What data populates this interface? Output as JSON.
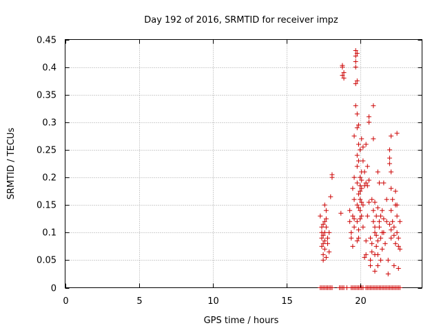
{
  "chart_data": {
    "type": "scatter",
    "title": "Day 192 of 2016, SRMTID for receiver impz",
    "xlabel": "GPS time / hours",
    "ylabel": "SRMTID / TECUs",
    "xlim": [
      0,
      24.2
    ],
    "ylim": [
      0,
      0.45
    ],
    "xticks": [
      0,
      5,
      10,
      15,
      20
    ],
    "xtick_labels": [
      "0",
      "5",
      "10",
      "15",
      "20"
    ],
    "yticks": [
      0,
      0.05,
      0.1,
      0.15,
      0.2,
      0.25,
      0.3,
      0.35,
      0.4,
      0.45
    ],
    "ytick_labels": [
      "0",
      "0.05",
      "0.1",
      "0.15",
      "0.2",
      "0.25",
      "0.3",
      "0.35",
      "0.4",
      "0.45"
    ],
    "grid": true,
    "marker": "+",
    "color": "#cc0000",
    "series": [
      {
        "name": "SRMTID",
        "points": [
          [
            17.3,
            0.13
          ],
          [
            17.4,
            0.11
          ],
          [
            17.4,
            0.09
          ],
          [
            17.5,
            0.08
          ],
          [
            17.5,
            0.06
          ],
          [
            17.4,
            0.1
          ],
          [
            17.6,
            0.15
          ],
          [
            17.6,
            0.12
          ],
          [
            17.7,
            0.14
          ],
          [
            17.6,
            0.07
          ],
          [
            17.5,
            0.05
          ],
          [
            17.7,
            0.11
          ],
          [
            17.8,
            0.09
          ],
          [
            17.8,
            0.08
          ],
          [
            17.5,
            0.095
          ],
          [
            17.6,
            0.085
          ],
          [
            17.7,
            0.125
          ],
          [
            17.4,
            0.075
          ],
          [
            17.9,
            0.1
          ],
          [
            17.9,
            0.065
          ],
          [
            17.7,
            0.055
          ],
          [
            17.6,
            0.1
          ],
          [
            17.5,
            0.115
          ],
          [
            18.1,
            0.2
          ],
          [
            18.0,
            0.165
          ],
          [
            18.1,
            0.205
          ],
          [
            18.7,
            0.135
          ],
          [
            18.8,
            0.4
          ],
          [
            18.8,
            0.385
          ],
          [
            18.9,
            0.39
          ],
          [
            18.9,
            0.38
          ],
          [
            18.8,
            0.403
          ],
          [
            19.3,
            0.14
          ],
          [
            19.3,
            0.12
          ],
          [
            19.4,
            0.1
          ],
          [
            19.4,
            0.09
          ],
          [
            19.5,
            0.18
          ],
          [
            19.5,
            0.13
          ],
          [
            19.5,
            0.075
          ],
          [
            19.6,
            0.2
          ],
          [
            19.6,
            0.16
          ],
          [
            19.6,
            0.11
          ],
          [
            19.6,
            0.275
          ],
          [
            19.7,
            0.43
          ],
          [
            19.7,
            0.42
          ],
          [
            19.7,
            0.41
          ],
          [
            19.7,
            0.4
          ],
          [
            19.7,
            0.37
          ],
          [
            19.7,
            0.33
          ],
          [
            19.8,
            0.425
          ],
          [
            19.8,
            0.375
          ],
          [
            19.8,
            0.315
          ],
          [
            19.8,
            0.29
          ],
          [
            19.8,
            0.24
          ],
          [
            19.8,
            0.22
          ],
          [
            19.8,
            0.19
          ],
          [
            19.8,
            0.15
          ],
          [
            19.8,
            0.12
          ],
          [
            19.8,
            0.085
          ],
          [
            19.9,
            0.295
          ],
          [
            19.9,
            0.26
          ],
          [
            19.9,
            0.23
          ],
          [
            19.9,
            0.17
          ],
          [
            19.9,
            0.145
          ],
          [
            19.9,
            0.105
          ],
          [
            20.0,
            0.25
          ],
          [
            20.0,
            0.2
          ],
          [
            20.0,
            0.185
          ],
          [
            20.0,
            0.175
          ],
          [
            20.0,
            0.16
          ],
          [
            20.0,
            0.14
          ],
          [
            20.0,
            0.125
          ],
          [
            20.1,
            0.27
          ],
          [
            20.1,
            0.21
          ],
          [
            20.1,
            0.195
          ],
          [
            20.1,
            0.18
          ],
          [
            20.1,
            0.155
          ],
          [
            20.1,
            0.13
          ],
          [
            20.2,
            0.255
          ],
          [
            20.2,
            0.23
          ],
          [
            20.2,
            0.15
          ],
          [
            20.2,
            0.11
          ],
          [
            20.3,
            0.21
          ],
          [
            20.3,
            0.185
          ],
          [
            20.3,
            0.055
          ],
          [
            20.4,
            0.26
          ],
          [
            20.4,
            0.19
          ],
          [
            20.4,
            0.06
          ],
          [
            20.5,
            0.22
          ],
          [
            20.5,
            0.185
          ],
          [
            20.5,
            0.13
          ],
          [
            20.4,
            0.085
          ],
          [
            19.6,
            0.125
          ],
          [
            19.9,
            0.09
          ],
          [
            20.6,
            0.31
          ],
          [
            20.6,
            0.3
          ],
          [
            20.6,
            0.195
          ],
          [
            20.6,
            0.155
          ],
          [
            20.7,
            0.05
          ],
          [
            20.7,
            0.04
          ],
          [
            20.8,
            0.16
          ],
          [
            20.8,
            0.08
          ],
          [
            20.8,
            0.065
          ],
          [
            20.9,
            0.33
          ],
          [
            20.9,
            0.27
          ],
          [
            20.9,
            0.14
          ],
          [
            20.9,
            0.12
          ],
          [
            21.0,
            0.11
          ],
          [
            21.0,
            0.1
          ],
          [
            21.0,
            0.06
          ],
          [
            21.0,
            0.03
          ],
          [
            21.1,
            0.13
          ],
          [
            21.1,
            0.095
          ],
          [
            21.1,
            0.075
          ],
          [
            21.2,
            0.21
          ],
          [
            21.2,
            0.145
          ],
          [
            21.2,
            0.085
          ],
          [
            21.2,
            0.04
          ],
          [
            21.3,
            0.19
          ],
          [
            21.3,
            0.12
          ],
          [
            21.3,
            0.11
          ],
          [
            21.4,
            0.13
          ],
          [
            21.4,
            0.09
          ],
          [
            21.4,
            0.05
          ],
          [
            21.5,
            0.14
          ],
          [
            21.5,
            0.1
          ],
          [
            21.5,
            0.07
          ],
          [
            21.6,
            0.19
          ],
          [
            21.6,
            0.125
          ],
          [
            21.7,
            0.08
          ],
          [
            21.8,
            0.16
          ],
          [
            21.8,
            0.12
          ],
          [
            21.9,
            0.05
          ],
          [
            21.9,
            0.025
          ],
          [
            22.0,
            0.25
          ],
          [
            22.0,
            0.235
          ],
          [
            22.0,
            0.225
          ],
          [
            22.0,
            0.115
          ],
          [
            22.1,
            0.21
          ],
          [
            22.1,
            0.18
          ],
          [
            22.1,
            0.14
          ],
          [
            22.1,
            0.105
          ],
          [
            22.1,
            0.09
          ],
          [
            22.2,
            0.16
          ],
          [
            22.2,
            0.12
          ],
          [
            22.3,
            0.11
          ],
          [
            22.3,
            0.095
          ],
          [
            22.3,
            0.04
          ],
          [
            22.4,
            0.15
          ],
          [
            22.4,
            0.08
          ],
          [
            22.5,
            0.28
          ],
          [
            22.5,
            0.15
          ],
          [
            22.5,
            0.13
          ],
          [
            22.5,
            0.1
          ],
          [
            22.6,
            0.09
          ],
          [
            22.6,
            0.075
          ],
          [
            22.6,
            0.035
          ],
          [
            22.7,
            0.12
          ],
          [
            22.7,
            0.07
          ],
          [
            22.1,
            0.275
          ],
          [
            21.0,
            0.155
          ],
          [
            21.6,
            0.1
          ],
          [
            21.2,
            0.06
          ],
          [
            22.4,
            0.175
          ],
          [
            20.7,
            0.09
          ],
          [
            17.3,
            0
          ],
          [
            17.4,
            0
          ],
          [
            17.5,
            0
          ],
          [
            17.6,
            0
          ],
          [
            17.7,
            0
          ],
          [
            17.8,
            0
          ],
          [
            17.9,
            0
          ],
          [
            18.0,
            0
          ],
          [
            18.1,
            0
          ],
          [
            18.6,
            0
          ],
          [
            18.7,
            0
          ],
          [
            18.8,
            0
          ],
          [
            18.9,
            0
          ],
          [
            19.1,
            0
          ],
          [
            19.4,
            0
          ],
          [
            19.5,
            0
          ],
          [
            19.6,
            0
          ],
          [
            19.7,
            0
          ],
          [
            19.8,
            0
          ],
          [
            19.9,
            0
          ],
          [
            20.0,
            0
          ],
          [
            20.1,
            0
          ],
          [
            20.2,
            0
          ],
          [
            20.4,
            0
          ],
          [
            20.5,
            0
          ],
          [
            20.6,
            0
          ],
          [
            20.7,
            0
          ],
          [
            20.8,
            0
          ],
          [
            20.9,
            0
          ],
          [
            21.0,
            0
          ],
          [
            21.1,
            0
          ],
          [
            21.2,
            0
          ],
          [
            21.3,
            0
          ],
          [
            21.4,
            0
          ],
          [
            21.5,
            0
          ],
          [
            21.6,
            0
          ],
          [
            21.7,
            0
          ],
          [
            21.8,
            0
          ],
          [
            21.9,
            0
          ],
          [
            22.0,
            0
          ],
          [
            22.1,
            0
          ],
          [
            22.2,
            0
          ],
          [
            22.3,
            0
          ],
          [
            22.4,
            0
          ],
          [
            22.5,
            0
          ],
          [
            22.6,
            0
          ],
          [
            22.7,
            0
          ]
        ]
      }
    ]
  }
}
